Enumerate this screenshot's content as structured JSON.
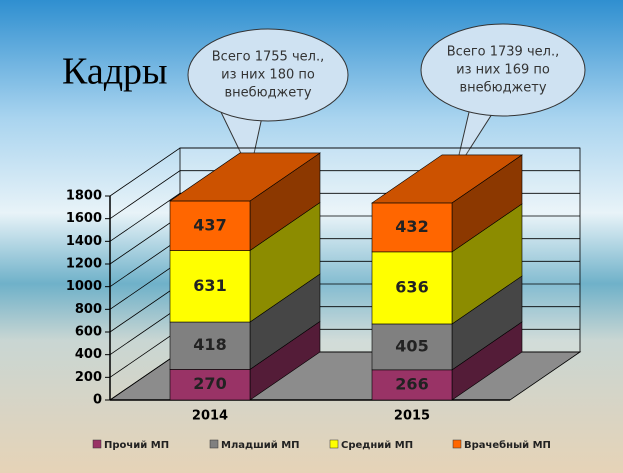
{
  "chart_data": {
    "type": "bar3d_stacked",
    "title": "Кадры",
    "categories": [
      "2014",
      "2015"
    ],
    "series": [
      {
        "name": "Прочий МП",
        "color": "#993366",
        "values": [
          270,
          266
        ]
      },
      {
        "name": "Младший МП",
        "color": "#808080",
        "values": [
          418,
          405
        ]
      },
      {
        "name": "Средний МП",
        "color": "#ffff00",
        "values": [
          631,
          636
        ]
      },
      {
        "name": "Врачебный МП",
        "color": "#ff6600",
        "values": [
          437,
          432
        ]
      }
    ],
    "ylim": [
      0,
      1800
    ],
    "yticks": [
      0,
      200,
      400,
      600,
      800,
      1000,
      1200,
      1400,
      1600,
      1800
    ],
    "grid": true,
    "annotations": [
      {
        "lines": [
          "Всего 1755 чел.,",
          "из них 180 по",
          "внебюджету"
        ]
      },
      {
        "lines": [
          "Всего 1739 чел.,",
          "из них 169 по",
          "внебюджету"
        ]
      }
    ]
  }
}
